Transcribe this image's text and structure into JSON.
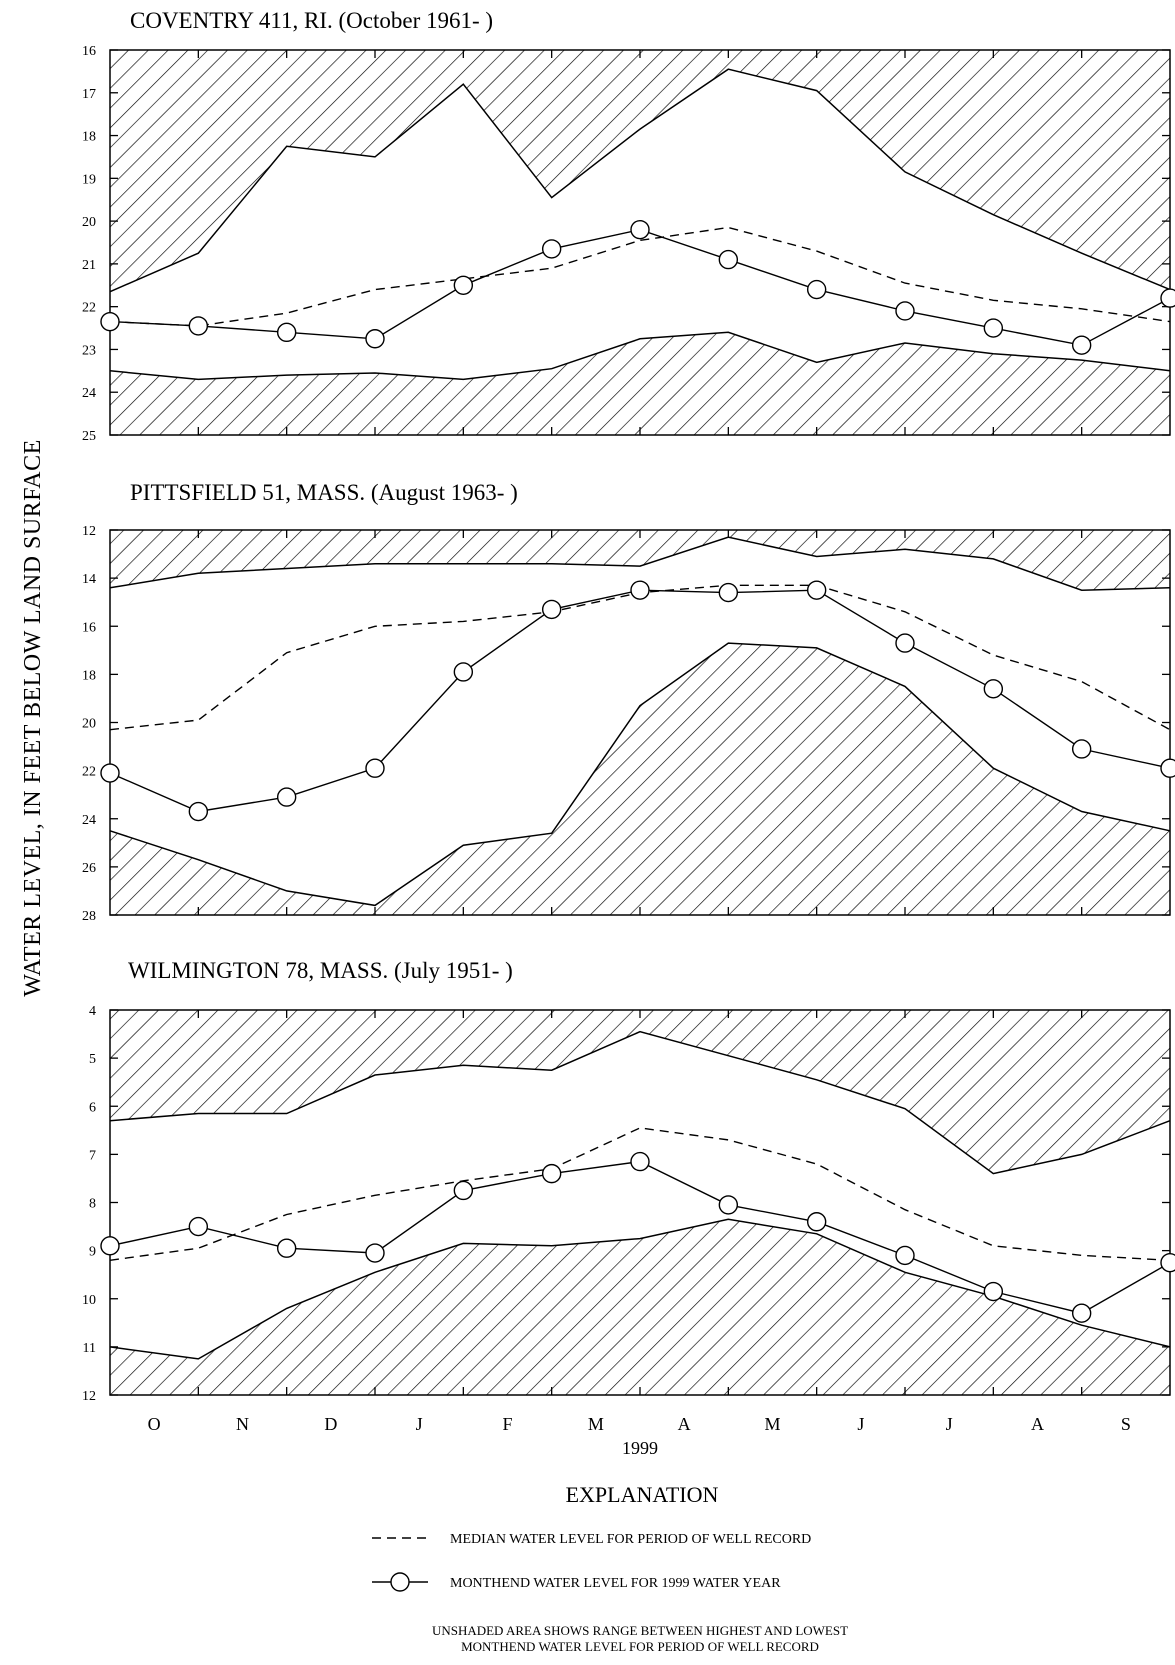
{
  "y_axis_label": "WATER LEVEL, IN FEET BELOW LAND SURFACE",
  "x_axis": {
    "months": [
      "O",
      "N",
      "D",
      "J",
      "F",
      "M",
      "A",
      "M",
      "J",
      "J",
      "A",
      "S"
    ],
    "year_label": "1999"
  },
  "explanation": {
    "title": "EXPLANATION",
    "median_label": "MEDIAN WATER LEVEL FOR PERIOD OF WELL RECORD",
    "monthend_label": "MONTHEND WATER LEVEL FOR 1999 WATER YEAR",
    "note_line1": "UNSHADED AREA SHOWS RANGE BETWEEN HIGHEST AND LOWEST",
    "note_line2": "MONTHEND WATER LEVEL FOR PERIOD OF WELL RECORD"
  },
  "chart_data": [
    {
      "type": "line",
      "title": "COVENTRY 411, RI. (October 1961- )",
      "ylabel": "WATER LEVEL, IN FEET BELOW LAND SURFACE",
      "y_inverted": true,
      "ylim": [
        16,
        25
      ],
      "yticks": [
        16,
        17,
        18,
        19,
        20,
        21,
        22,
        23,
        24,
        25
      ],
      "x_points": [
        "Sep 30",
        "Oct 31",
        "Nov 30",
        "Dec 31",
        "Jan 31",
        "Feb 28",
        "Mar 31",
        "Apr 30",
        "May 31",
        "Jun 30",
        "Jul 31",
        "Aug 31",
        "Sep 30"
      ],
      "highest": [
        21.65,
        20.75,
        18.25,
        18.5,
        16.8,
        19.45,
        17.85,
        16.45,
        16.95,
        18.85,
        19.85,
        20.75,
        21.6
      ],
      "lowest": [
        23.5,
        23.7,
        23.6,
        23.55,
        23.7,
        23.45,
        22.75,
        22.6,
        23.3,
        22.85,
        23.1,
        23.25,
        23.5
      ],
      "series": [
        {
          "name": "MEDIAN WATER LEVEL FOR PERIOD OF WELL RECORD",
          "style": "dashed",
          "values": [
            22.35,
            22.45,
            22.15,
            21.6,
            21.35,
            21.1,
            20.45,
            20.15,
            20.7,
            21.45,
            21.85,
            22.05,
            22.35
          ]
        },
        {
          "name": "MONTHEND WATER LEVEL FOR 1999 WATER YEAR",
          "style": "solid-circles",
          "values": [
            22.35,
            22.45,
            22.6,
            22.75,
            21.5,
            20.65,
            20.2,
            20.9,
            21.6,
            22.1,
            22.5,
            22.9,
            21.8
          ]
        }
      ]
    },
    {
      "type": "line",
      "title": "PITTSFIELD 51, MASS. (August 1963- )",
      "ylabel": "WATER LEVEL, IN FEET BELOW LAND SURFACE",
      "y_inverted": true,
      "ylim": [
        12,
        28
      ],
      "yticks": [
        12,
        14,
        16,
        18,
        20,
        22,
        24,
        26,
        28
      ],
      "x_points": [
        "Sep 30",
        "Oct 31",
        "Nov 30",
        "Dec 31",
        "Jan 31",
        "Feb 28",
        "Mar 31",
        "Apr 30",
        "May 31",
        "Jun 30",
        "Jul 31",
        "Aug 31",
        "Sep 30"
      ],
      "highest": [
        14.4,
        13.8,
        13.6,
        13.4,
        13.4,
        13.4,
        13.5,
        12.3,
        13.1,
        12.8,
        13.2,
        14.5,
        14.4
      ],
      "lowest": [
        24.5,
        25.7,
        27.0,
        27.6,
        25.1,
        24.6,
        19.3,
        16.7,
        16.9,
        18.5,
        21.9,
        23.7,
        24.5
      ],
      "series": [
        {
          "name": "MEDIAN WATER LEVEL FOR PERIOD OF WELL RECORD",
          "style": "dashed",
          "values": [
            20.3,
            19.9,
            17.1,
            16.0,
            15.8,
            15.4,
            14.6,
            14.3,
            14.3,
            15.4,
            17.2,
            18.3,
            20.3
          ]
        },
        {
          "name": "MONTHEND WATER LEVEL FOR 1999 WATER YEAR",
          "style": "solid-circles",
          "values": [
            22.1,
            23.7,
            23.1,
            21.9,
            17.9,
            15.3,
            14.5,
            14.6,
            14.5,
            16.7,
            18.6,
            21.1,
            21.9
          ]
        }
      ]
    },
    {
      "type": "line",
      "title": "WILMINGTON 78, MASS. (July 1951- )",
      "ylabel": "WATER LEVEL, IN FEET BELOW LAND SURFACE",
      "y_inverted": true,
      "ylim": [
        4,
        12
      ],
      "yticks": [
        4,
        5,
        6,
        7,
        8,
        9,
        10,
        11,
        12
      ],
      "x_points": [
        "Sep 30",
        "Oct 31",
        "Nov 30",
        "Dec 31",
        "Jan 31",
        "Feb 28",
        "Mar 31",
        "Apr 30",
        "May 31",
        "Jun 30",
        "Jul 31",
        "Aug 31",
        "Sep 30"
      ],
      "highest": [
        6.3,
        6.15,
        6.15,
        5.35,
        5.15,
        5.25,
        4.45,
        4.95,
        5.45,
        6.05,
        7.4,
        7.0,
        6.3
      ],
      "lowest": [
        11.0,
        11.25,
        10.2,
        9.45,
        8.85,
        8.9,
        8.75,
        8.35,
        8.65,
        9.45,
        9.95,
        10.55,
        11.0
      ],
      "series": [
        {
          "name": "MEDIAN WATER LEVEL FOR PERIOD OF WELL RECORD",
          "style": "dashed",
          "values": [
            9.2,
            8.95,
            8.25,
            7.85,
            7.55,
            7.3,
            6.45,
            6.7,
            7.2,
            8.15,
            8.9,
            9.1,
            9.2
          ]
        },
        {
          "name": "MONTHEND WATER LEVEL FOR 1999 WATER YEAR",
          "style": "solid-circles",
          "values": [
            8.9,
            8.5,
            8.95,
            9.05,
            7.75,
            7.4,
            7.15,
            8.05,
            8.4,
            9.1,
            9.85,
            10.3,
            9.25
          ]
        }
      ]
    }
  ]
}
